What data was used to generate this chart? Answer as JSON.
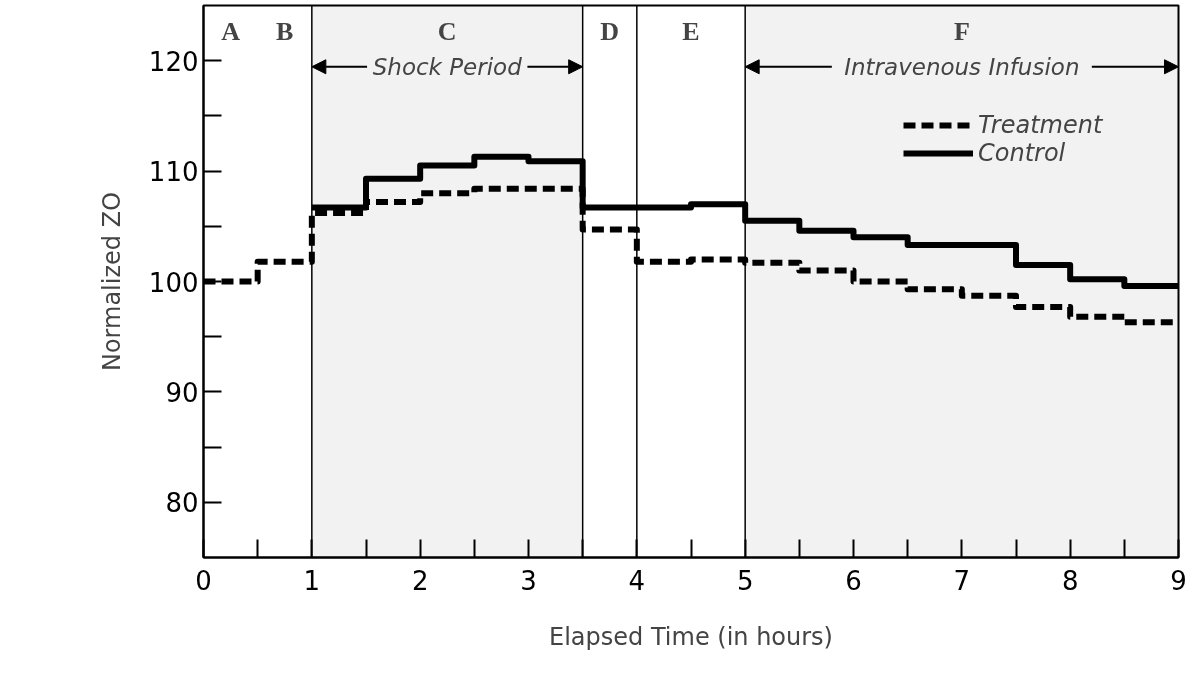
{
  "chart_data": {
    "type": "step",
    "xlabel": "Elapsed Time (in hours)",
    "ylabel": "Normalized ZO",
    "x": [
      0,
      0.5,
      1,
      1.5,
      2,
      2.5,
      3,
      3.5,
      4,
      4.5,
      5,
      5.5,
      6,
      6.5,
      7,
      7.5,
      8,
      8.5,
      9
    ],
    "series": [
      {
        "name": "Treatment",
        "color": "#000000",
        "line_style": "dashed",
        "values": [
          100,
          101.8,
          106.2,
          107.2,
          108,
          108.4,
          108.4,
          104.7,
          101.8,
          102,
          101.7,
          101,
          100,
          99.3,
          98.7,
          97.7,
          96.8,
          96.3,
          96.3
        ]
      },
      {
        "name": "Control",
        "color": "#000000",
        "line_style": "solid",
        "values": [
          null,
          null,
          106.7,
          109.3,
          110.5,
          111.3,
          110.9,
          106.7,
          106.7,
          107,
          105.5,
          104.6,
          104,
          103.3,
          103.3,
          101.5,
          100.2,
          99.6,
          99.6
        ]
      }
    ],
    "xlim": [
      0,
      9
    ],
    "ylim": [
      75,
      125
    ],
    "xticks": [
      0,
      1,
      2,
      3,
      4,
      5,
      6,
      7,
      8,
      9
    ],
    "yticks": [
      80,
      90,
      100,
      110,
      120
    ],
    "ref_lines": [
      {
        "axis": "x",
        "value": 1,
        "color": "#000000"
      },
      {
        "axis": "x",
        "value": 3.5,
        "color": "#000000"
      },
      {
        "axis": "x",
        "value": 4,
        "color": "#000000"
      },
      {
        "axis": "x",
        "value": 5,
        "color": "#000000"
      }
    ],
    "bands": [
      {
        "axis": "x",
        "from": 1,
        "to": 3.5,
        "label": "Shock Period",
        "color": "#000000"
      },
      {
        "axis": "x",
        "from": 5,
        "to": 9,
        "label": "Intravenous Infusion",
        "color": "#000000"
      }
    ],
    "annotations": [
      "A",
      "B",
      "C",
      "D",
      "E",
      "F"
    ],
    "grid": false,
    "legend": "top right",
    "marker": "none"
  }
}
